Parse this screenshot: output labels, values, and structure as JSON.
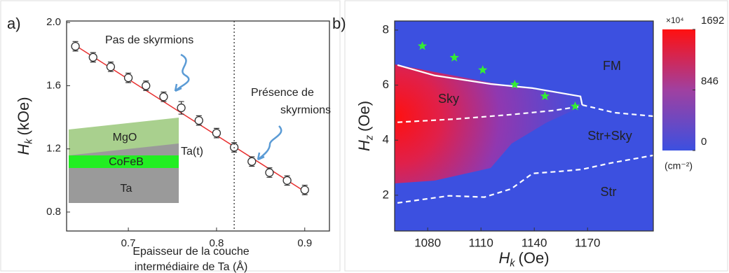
{
  "chart_data": [
    {
      "type": "scatter",
      "panel": "a)",
      "x_label": [
        "Epaisseur de la couche",
        "intermédiaire de Ta (Å)"
      ],
      "y_label": {
        "symbol": "H",
        "subscript": "k",
        "unit": "(kOe)"
      },
      "xlim": [
        0.63,
        0.928
      ],
      "ylim": [
        0.68,
        2.01
      ],
      "xticks": [
        0.7,
        0.8,
        0.9
      ],
      "yticks": [
        0.8,
        1.2,
        1.6,
        {
          "value": 2,
          "label": "2.0"
        }
      ],
      "vline": {
        "x": 0.82,
        "style": "dotted"
      },
      "series": [
        {
          "style": "solid",
          "color": "#e83030",
          "x": [
            0.64,
            0.9
          ],
          "y": [
            1.855,
            0.93
          ]
        },
        {
          "marker": "circle",
          "color": "#333333",
          "x": [
            0.64,
            0.66,
            0.68,
            0.7,
            0.72,
            0.74,
            0.76,
            0.78,
            0.8,
            0.82,
            0.84,
            0.86,
            0.88,
            0.9
          ],
          "y": [
            1.85,
            1.78,
            1.72,
            1.65,
            1.6,
            1.53,
            1.46,
            1.38,
            1.3,
            1.21,
            1.12,
            1.05,
            1.0,
            0.94
          ],
          "errors": [
            0.03,
            0.03,
            0.03,
            0.03,
            0.03,
            0.03,
            0.04,
            0.03,
            0.03,
            0.03,
            0.03,
            0.03,
            0.03,
            0.03
          ]
        }
      ],
      "annotations": [
        "Pas de skyrmions",
        "Présence de",
        "skyrmions"
      ],
      "inset_labels": [
        "MgO",
        "Ta(t)",
        "CoFeB",
        "Ta"
      ]
    },
    {
      "type": "heatmap",
      "panel": "b)",
      "x_label": {
        "symbol": "H",
        "subscript": "k",
        "unit": "(Oe)"
      },
      "y_label": {
        "symbol": "H",
        "subscript": "z",
        "unit": "(Oe)"
      },
      "xlim": [
        1061.4,
        1207
      ],
      "ylim": [
        0.7,
        8.33
      ],
      "xticks": [
        1080,
        1110,
        1140,
        1170
      ],
      "yticks": [
        2,
        4,
        6,
        8
      ],
      "series": [
        {
          "style": "solid",
          "color": "#ffffff",
          "x": [
            1063,
            1084,
            1115.5,
            1139,
            1166,
            1167
          ],
          "y": [
            6.73,
            6.35,
            6.04,
            5.89,
            5.59,
            5.28
          ]
        },
        {
          "style": "dashed",
          "color": "#ffffff",
          "x": [
            1063,
            1096,
            1127,
            1151,
            1166
          ],
          "y": [
            4.65,
            4.77,
            4.93,
            5.08,
            5.23
          ]
        },
        {
          "style": "dashed",
          "color": "#ffffff",
          "x": [
            1167,
            1185,
            1207
          ],
          "y": [
            5.28,
            5.0,
            4.87
          ]
        },
        {
          "style": "dashed",
          "color": "#ffffff",
          "x": [
            1063,
            1092,
            1112,
            1127,
            1139,
            1155,
            1167,
            1183,
            1207
          ],
          "y": [
            1.72,
            1.98,
            1.93,
            2.23,
            2.79,
            2.87,
            2.94,
            3.17,
            3.45
          ]
        },
        {
          "marker": "star",
          "color": "#33ee33",
          "x": [
            1077,
            1095,
            1111,
            1129,
            1146,
            1163
          ],
          "y": [
            7.42,
            7.0,
            6.55,
            6.02,
            5.6,
            5.23
          ]
        }
      ],
      "annotations": [
        "FM",
        "Sky",
        "Str+Sky",
        "Str"
      ],
      "colorbar": {
        "multiplier": "×10⁴",
        "unit": "(cm⁻²)",
        "lim": [
          0,
          1692
        ],
        "ticks": [
          0,
          846,
          1692
        ]
      }
    }
  ]
}
